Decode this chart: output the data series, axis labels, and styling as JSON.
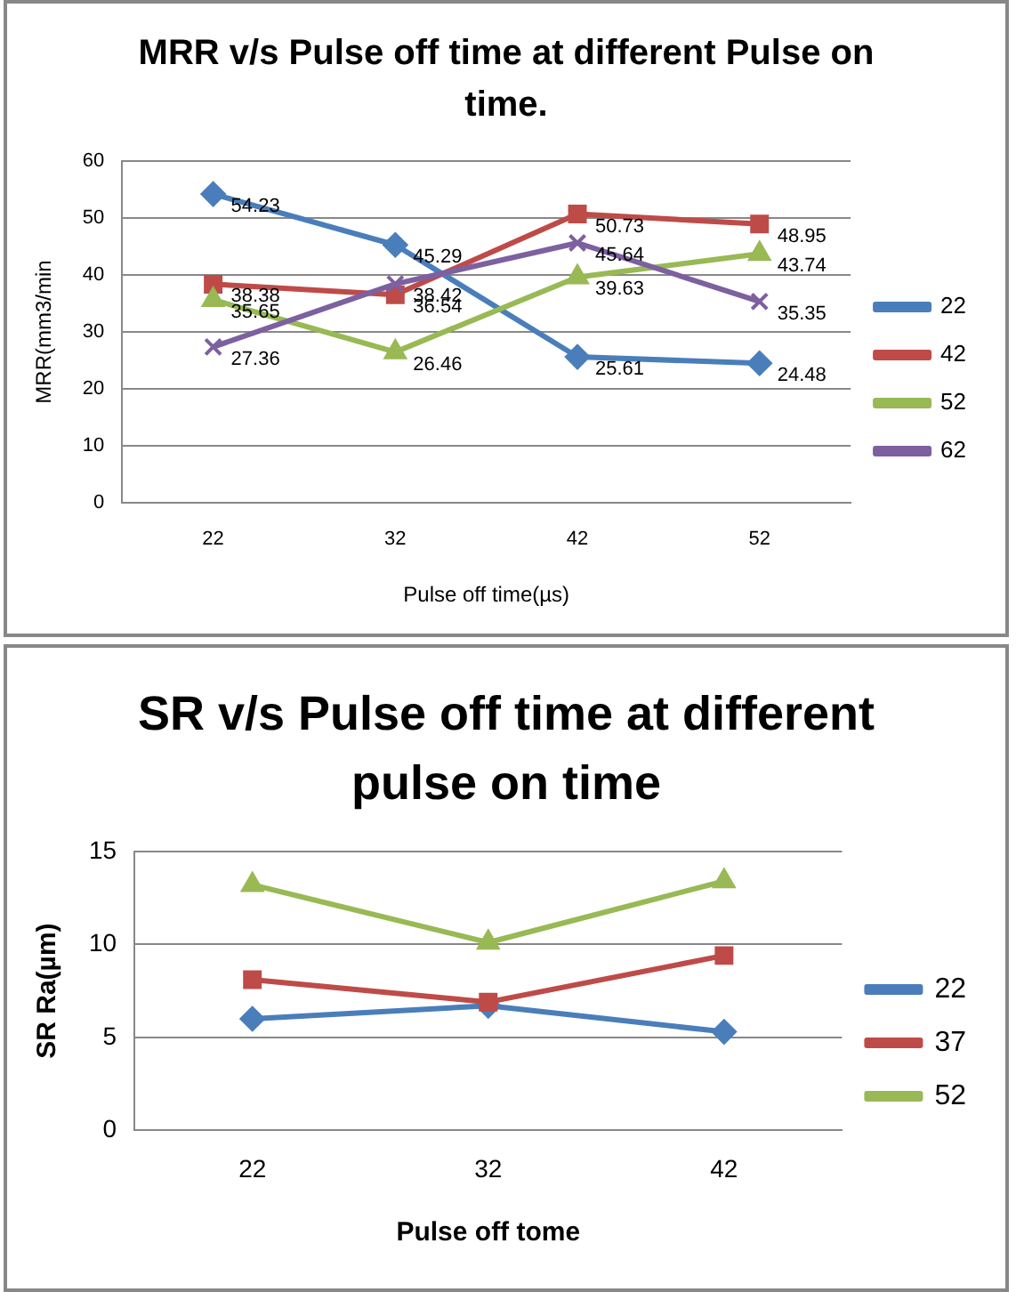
{
  "chart_data": [
    {
      "type": "line",
      "title": "MRR v/s Pulse off time at different Pulse on time.",
      "xlabel": "Pulse off time(µs)",
      "ylabel": "MRR(mm3/min",
      "categories": [
        "22",
        "32",
        "42",
        "52"
      ],
      "series": [
        {
          "name": "22",
          "color": "#4a7ebb",
          "marker": "diamond",
          "values": [
            54.23,
            45.29,
            25.61,
            24.48
          ]
        },
        {
          "name": "42",
          "color": "#be4b48",
          "marker": "square",
          "values": [
            38.38,
            36.54,
            50.73,
            48.95
          ]
        },
        {
          "name": "52",
          "color": "#98b954",
          "marker": "triangle",
          "values": [
            35.65,
            26.46,
            39.63,
            43.74
          ]
        },
        {
          "name": "62",
          "color": "#7d60a0",
          "marker": "cross",
          "values": [
            27.36,
            38.42,
            45.64,
            35.35
          ]
        }
      ],
      "ylim": [
        0,
        60
      ],
      "yticks": [
        0,
        10,
        20,
        30,
        40,
        50,
        60
      ],
      "grid": "y",
      "legend": "right",
      "data_labels": true
    },
    {
      "type": "line",
      "title": "SR v/s Pulse off time at different pulse on time",
      "xlabel": "Pulse off tome",
      "ylabel": "SR Ra(µm)",
      "categories": [
        "22",
        "32",
        "42"
      ],
      "series": [
        {
          "name": "22",
          "color": "#4a7ebb",
          "marker": "diamond",
          "values": [
            6.0,
            6.7,
            5.3
          ]
        },
        {
          "name": "37",
          "color": "#be4b48",
          "marker": "square",
          "values": [
            8.1,
            6.9,
            9.4
          ]
        },
        {
          "name": "52",
          "color": "#98b954",
          "marker": "triangle",
          "values": [
            13.2,
            10.1,
            13.4
          ]
        }
      ],
      "ylim": [
        0,
        15
      ],
      "yticks": [
        0,
        5,
        10,
        15
      ],
      "grid": "y",
      "legend": "right"
    }
  ]
}
